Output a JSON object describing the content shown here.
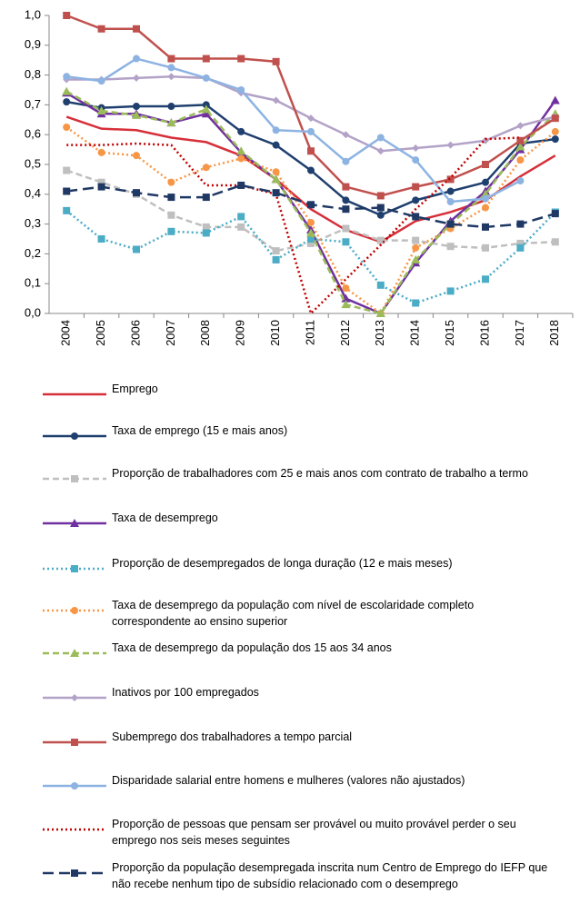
{
  "chart_data": {
    "type": "line",
    "x": [
      "2004",
      "2005",
      "2006",
      "2007",
      "2008",
      "2009",
      "2010",
      "2011",
      "2012",
      "2013",
      "2014",
      "2015",
      "2016",
      "2017",
      "2018"
    ],
    "ylim": [
      0,
      1
    ],
    "yticks": [
      {
        "value": 0,
        "label": "0,0"
      },
      {
        "value": 0.1,
        "label": "0,1"
      },
      {
        "value": 0.2,
        "label": "0,2"
      },
      {
        "value": 0.3,
        "label": "0,3"
      },
      {
        "value": 0.4,
        "label": "0,4"
      },
      {
        "value": 0.5,
        "label": "0,5"
      },
      {
        "value": 0.6,
        "label": "0,6"
      },
      {
        "value": 0.7,
        "label": "0,7"
      },
      {
        "value": 0.8,
        "label": "0,8"
      },
      {
        "value": 0.9,
        "label": "0,9"
      },
      {
        "value": 1,
        "label": "1,0"
      }
    ],
    "grid": false,
    "series": [
      {
        "name": "Emprego",
        "color": "#d62f3a",
        "line_style": "solid",
        "marker": "none",
        "values": [
          0.66,
          0.62,
          0.615,
          0.59,
          0.575,
          0.53,
          0.45,
          0.35,
          0.28,
          0.24,
          0.31,
          0.34,
          0.38,
          0.46,
          0.53
        ]
      },
      {
        "name": "Taxa de emprego (15 e mais anos)",
        "color": "#1f3f6e",
        "line_style": "solid",
        "marker": "circle",
        "values": [
          0.71,
          0.69,
          0.695,
          0.695,
          0.7,
          0.61,
          0.565,
          0.48,
          0.38,
          0.33,
          0.38,
          0.41,
          0.44,
          0.57,
          0.585
        ]
      },
      {
        "name": "Proporção de trabalhadores com 25 e mais anos com contrato de trabalho a termo",
        "color": "#bfbfbf",
        "line_style": "dashed",
        "marker": "square",
        "values": [
          0.48,
          0.44,
          0.4,
          0.33,
          0.29,
          0.29,
          0.21,
          0.235,
          0.285,
          0.245,
          0.245,
          0.225,
          0.22,
          0.235,
          0.24
        ]
      },
      {
        "name": "Taxa de desemprego",
        "color": "#7030a0",
        "line_style": "solid",
        "marker": "triangle",
        "values": [
          0.74,
          0.67,
          0.67,
          0.64,
          0.67,
          0.54,
          0.45,
          0.28,
          0.05,
          0,
          0.17,
          0.31,
          0.41,
          0.55,
          0.715
        ]
      },
      {
        "name": "Proporção de desempregados de longa duração (12 e mais meses)",
        "color": "#4bacc6",
        "line_style": "dotted",
        "marker": "square",
        "values": [
          0.345,
          0.25,
          0.215,
          0.275,
          0.27,
          0.325,
          0.18,
          0.25,
          0.24,
          0.095,
          0.035,
          0.075,
          0.115,
          0.22,
          0.34
        ]
      },
      {
        "name": "Taxa de desemprego da população com nível de escolaridade completo correspondente ao ensino superior",
        "color": "#f79646",
        "line_style": "dotted",
        "marker": "circle",
        "values": [
          0.625,
          0.54,
          0.53,
          0.44,
          0.49,
          0.52,
          0.475,
          0.305,
          0.085,
          0,
          0.22,
          0.285,
          0.355,
          0.515,
          0.61
        ]
      },
      {
        "name": "Taxa de desemprego da população dos 15 aos 34 anos",
        "color": "#9bbb59",
        "line_style": "dashed",
        "marker": "triangle",
        "values": [
          0.745,
          0.68,
          0.665,
          0.64,
          0.685,
          0.545,
          0.45,
          0.27,
          0.03,
          0,
          0.18,
          0.3,
          0.4,
          0.56,
          0.67
        ]
      },
      {
        "name": "Inativos por 100 empregados",
        "color": "#b3a2c7",
        "line_style": "solid",
        "marker": "diamond",
        "values": [
          0.785,
          0.785,
          0.79,
          0.795,
          0.79,
          0.74,
          0.715,
          0.655,
          0.6,
          0.545,
          0.555,
          0.565,
          0.58,
          0.63,
          0.66
        ]
      },
      {
        "name": "Subemprego dos trabalhadores a tempo parcial",
        "color": "#c0504d",
        "line_style": "solid",
        "marker": "square",
        "values": [
          1,
          0.955,
          0.955,
          0.855,
          0.855,
          0.855,
          0.845,
          0.545,
          0.425,
          0.395,
          0.425,
          0.45,
          0.5,
          0.58,
          0.655
        ]
      },
      {
        "name": "Disparidade salarial entre homens e mulheres (valores não ajustados)",
        "color": "#8db3e2",
        "line_style": "solid",
        "marker": "circle",
        "values": [
          0.795,
          0.78,
          0.855,
          0.825,
          0.79,
          0.75,
          0.615,
          0.61,
          0.51,
          0.59,
          0.515,
          0.375,
          0.385,
          0.445,
          null
        ]
      },
      {
        "name": "Proporção de pessoas que pensam ser provável ou muito provável perder o seu emprego nos seis meses seguintes",
        "color": "#c00000",
        "line_style": "dotted",
        "marker": "none",
        "values": [
          0.565,
          0.565,
          0.57,
          0.565,
          0.43,
          0.43,
          0.4,
          0,
          0.115,
          0.23,
          0.35,
          0.455,
          0.585,
          0.59,
          null
        ]
      },
      {
        "name": "Proporção da população desempregada inscrita num Centro de Emprego do IEFP que não recebe nenhum tipo de subsídio relacionado com o desemprego",
        "color": "#1f3864",
        "line_style": "long-dashed",
        "marker": "square",
        "values": [
          0.41,
          0.425,
          0.405,
          0.39,
          0.39,
          0.43,
          0.405,
          0.365,
          0.35,
          0.355,
          0.325,
          0.3,
          0.29,
          0.3,
          0.335
        ]
      }
    ]
  }
}
